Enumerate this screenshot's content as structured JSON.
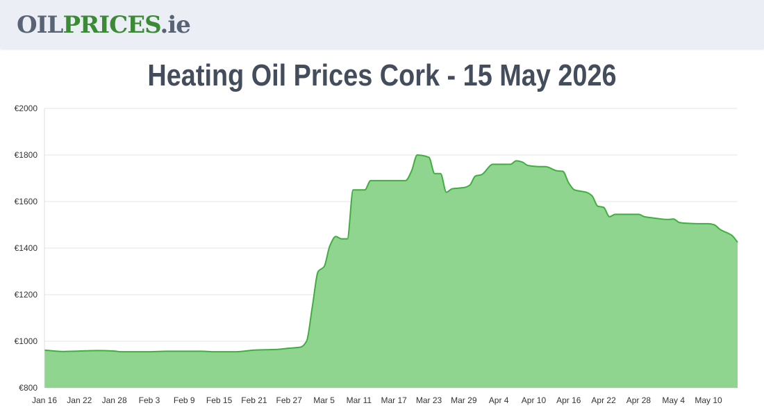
{
  "header": {
    "logo_part1": "OIL",
    "logo_part2": "PRICES",
    "logo_part3": ".ie"
  },
  "colors": {
    "header_bg": "#eceef5",
    "logo_gray": "#586474",
    "logo_green": "#3b8a35",
    "area_fill": "#90d58f",
    "line": "#3fae3f",
    "title": "#434d5c",
    "grid": "#e6e6e6"
  },
  "chart_data": {
    "type": "area",
    "title": "Heating Oil Prices Cork - 15 May 2026",
    "xlabel": "",
    "ylabel": "",
    "ylim": [
      800,
      2000
    ],
    "grid": true,
    "y_ticks": [
      "€2000",
      "€1800",
      "€1600",
      "€1400",
      "€1200",
      "€1000",
      "€800"
    ],
    "y_tick_values": [
      2000,
      1800,
      1600,
      1400,
      1200,
      1000,
      800
    ],
    "x_ticks": [
      "Jan 16",
      "Jan 22",
      "Jan 28",
      "Feb 3",
      "Feb 9",
      "Feb 15",
      "Feb 21",
      "Feb 27",
      "Mar 5",
      "Mar 11",
      "Mar 17",
      "Mar 23",
      "Mar 29",
      "Apr 4",
      "Apr 10",
      "Apr 16",
      "Apr 22",
      "Apr 28",
      "May 4",
      "May 10"
    ],
    "x_range": [
      "2026-01-16",
      "2026-05-15"
    ],
    "series": [
      {
        "points": [
          [
            "2026-01-16",
            962
          ],
          [
            "2026-01-19",
            956
          ],
          [
            "2026-01-22",
            958
          ],
          [
            "2026-01-25",
            960
          ],
          [
            "2026-01-28",
            958
          ],
          [
            "2026-01-29",
            955
          ],
          [
            "2026-02-03",
            955
          ],
          [
            "2026-02-06",
            957
          ],
          [
            "2026-02-12",
            957
          ],
          [
            "2026-02-14",
            955
          ],
          [
            "2026-02-18",
            955
          ],
          [
            "2026-02-21",
            962
          ],
          [
            "2026-02-25",
            965
          ],
          [
            "2026-02-27",
            970
          ],
          [
            "2026-03-01",
            975
          ],
          [
            "2026-03-02",
            1000
          ],
          [
            "2026-03-03",
            1150
          ],
          [
            "2026-03-04",
            1300
          ],
          [
            "2026-03-05",
            1320
          ],
          [
            "2026-03-06",
            1410
          ],
          [
            "2026-03-07",
            1450
          ],
          [
            "2026-03-08",
            1440
          ],
          [
            "2026-03-09",
            1440
          ],
          [
            "2026-03-10",
            1650
          ],
          [
            "2026-03-11",
            1650
          ],
          [
            "2026-03-12",
            1650
          ],
          [
            "2026-03-13",
            1690
          ],
          [
            "2026-03-15",
            1690
          ],
          [
            "2026-03-18",
            1690
          ],
          [
            "2026-03-19",
            1690
          ],
          [
            "2026-03-20",
            1730
          ],
          [
            "2026-03-21",
            1800
          ],
          [
            "2026-03-23",
            1790
          ],
          [
            "2026-03-24",
            1720
          ],
          [
            "2026-03-25",
            1720
          ],
          [
            "2026-03-26",
            1640
          ],
          [
            "2026-03-27",
            1655
          ],
          [
            "2026-03-29",
            1660
          ],
          [
            "2026-03-30",
            1670
          ],
          [
            "2026-03-31",
            1710
          ],
          [
            "2026-04-01",
            1715
          ],
          [
            "2026-04-03",
            1760
          ],
          [
            "2026-04-06",
            1760
          ],
          [
            "2026-04-07",
            1775
          ],
          [
            "2026-04-08",
            1770
          ],
          [
            "2026-04-09",
            1755
          ],
          [
            "2026-04-11",
            1750
          ],
          [
            "2026-04-12",
            1750
          ],
          [
            "2026-04-14",
            1732
          ],
          [
            "2026-04-15",
            1730
          ],
          [
            "2026-04-16",
            1680
          ],
          [
            "2026-04-17",
            1650
          ],
          [
            "2026-04-19",
            1640
          ],
          [
            "2026-04-20",
            1625
          ],
          [
            "2026-04-21",
            1580
          ],
          [
            "2026-04-22",
            1575
          ],
          [
            "2026-04-23",
            1535
          ],
          [
            "2026-04-24",
            1545
          ],
          [
            "2026-04-28",
            1545
          ],
          [
            "2026-04-29",
            1535
          ],
          [
            "2026-05-01",
            1528
          ],
          [
            "2026-05-03",
            1523
          ],
          [
            "2026-05-04",
            1525
          ],
          [
            "2026-05-05",
            1510
          ],
          [
            "2026-05-06",
            1507
          ],
          [
            "2026-05-08",
            1505
          ],
          [
            "2026-05-10",
            1505
          ],
          [
            "2026-05-11",
            1500
          ],
          [
            "2026-05-12",
            1480
          ],
          [
            "2026-05-14",
            1455
          ],
          [
            "2026-05-15",
            1425
          ]
        ]
      }
    ]
  }
}
